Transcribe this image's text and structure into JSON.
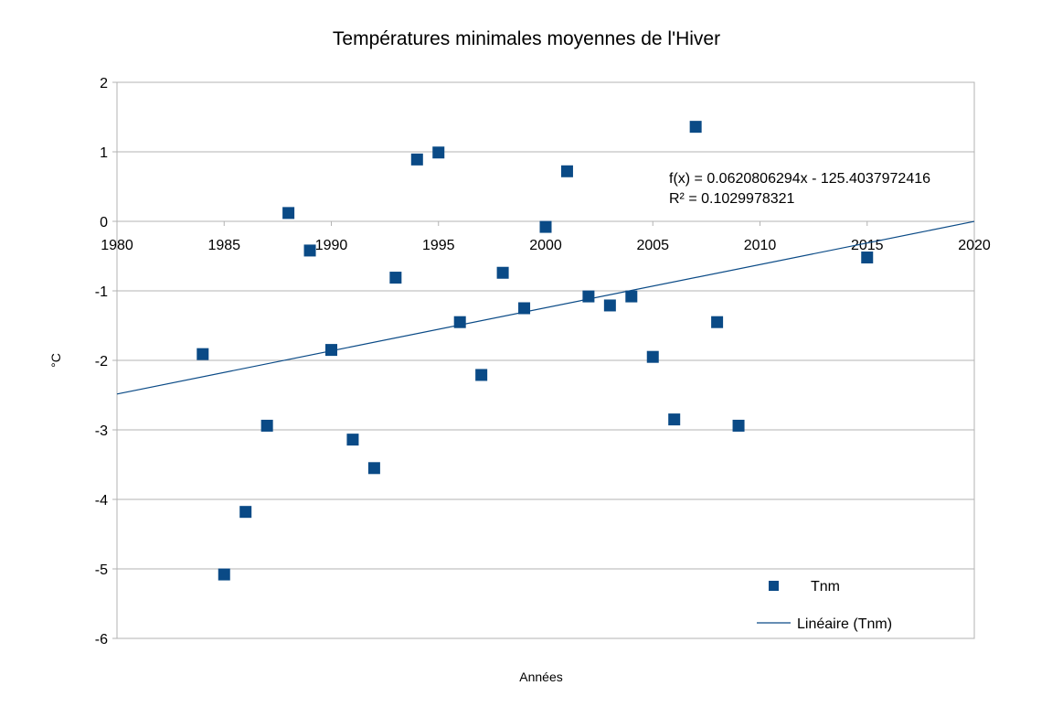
{
  "chart_data": {
    "type": "scatter",
    "title": "Températures minimales moyennes de l'Hiver",
    "xlabel": "Années",
    "ylabel": "°C",
    "xlim": [
      1980,
      2020
    ],
    "ylim": [
      -6,
      2
    ],
    "x_ticks": [
      "1980",
      "1985",
      "1990",
      "1995",
      "2000",
      "2005",
      "2010",
      "2015",
      "2020"
    ],
    "y_ticks": [
      "2",
      "1",
      "0",
      "-1",
      "-2",
      "-3",
      "-4",
      "-5",
      "-6"
    ],
    "grid": true,
    "legend_position": "bottom-right",
    "series": [
      {
        "name": "Tnm",
        "color": "#0a4a86",
        "marker": "square",
        "points": [
          {
            "x": 1984,
            "y": -1.91
          },
          {
            "x": 1985,
            "y": -5.08
          },
          {
            "x": 1986,
            "y": -4.18
          },
          {
            "x": 1987,
            "y": -2.94
          },
          {
            "x": 1988,
            "y": 0.12
          },
          {
            "x": 1989,
            "y": -0.42
          },
          {
            "x": 1990,
            "y": -1.85
          },
          {
            "x": 1991,
            "y": -3.14
          },
          {
            "x": 1992,
            "y": -3.55
          },
          {
            "x": 1993,
            "y": -0.81
          },
          {
            "x": 1994,
            "y": 0.89
          },
          {
            "x": 1995,
            "y": 0.99
          },
          {
            "x": 1996,
            "y": -1.45
          },
          {
            "x": 1997,
            "y": -2.21
          },
          {
            "x": 1998,
            "y": -0.74
          },
          {
            "x": 1999,
            "y": -1.25
          },
          {
            "x": 2000,
            "y": -0.08
          },
          {
            "x": 2001,
            "y": 0.72
          },
          {
            "x": 2002,
            "y": -1.08
          },
          {
            "x": 2003,
            "y": -1.21
          },
          {
            "x": 2004,
            "y": -1.08
          },
          {
            "x": 2005,
            "y": -1.95
          },
          {
            "x": 2006,
            "y": -2.85
          },
          {
            "x": 2007,
            "y": 1.36
          },
          {
            "x": 2008,
            "y": -1.45
          },
          {
            "x": 2009,
            "y": -2.94
          },
          {
            "x": 2015,
            "y": -0.52
          }
        ]
      }
    ],
    "trendline": {
      "name": "Linéaire (Tnm)",
      "type": "linear",
      "slope": 0.0620806294,
      "intercept": -125.4037972416,
      "color": "#0a4a86",
      "equation_label": "f(x) = 0.0620806294x - 125.4037972416",
      "r2_label": "R² = 0.1029978321"
    }
  }
}
